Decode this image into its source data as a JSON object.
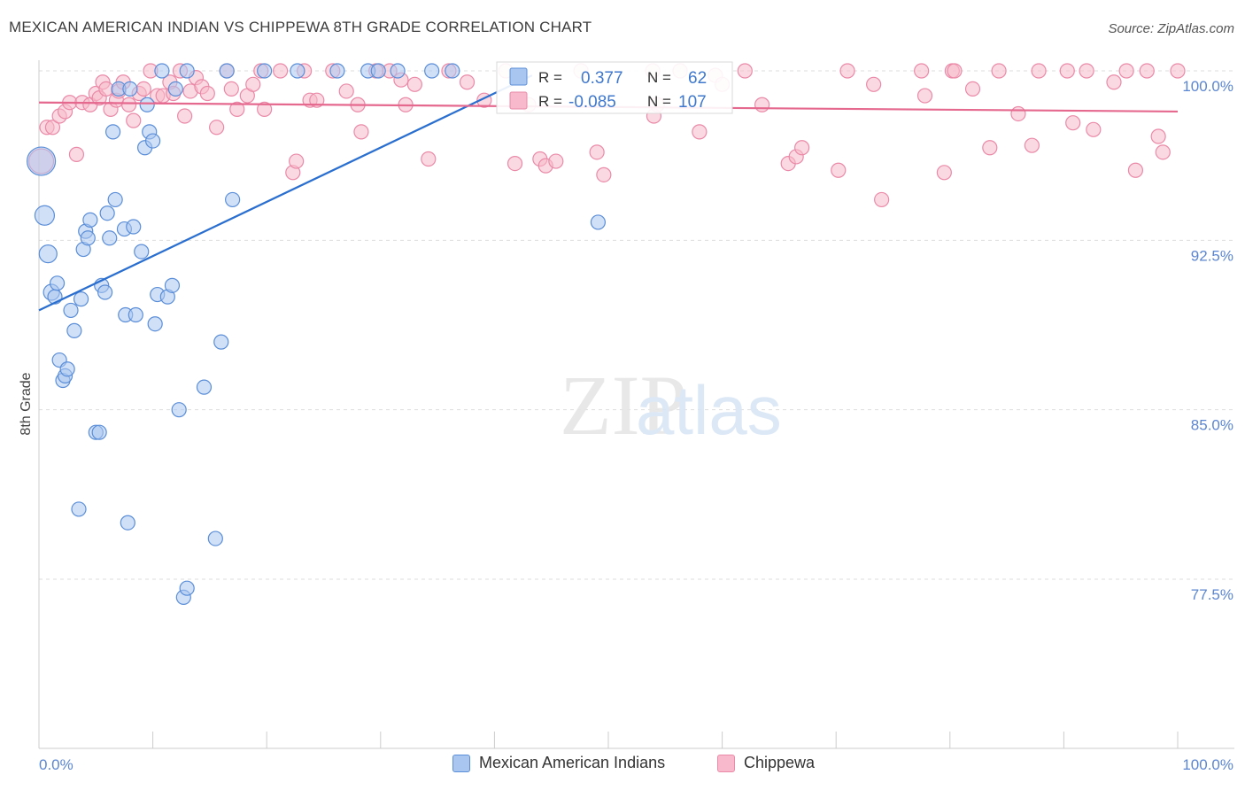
{
  "header": {
    "title": "MEXICAN AMERICAN INDIAN VS CHIPPEWA 8TH GRADE CORRELATION CHART",
    "source": "Source: ZipAtlas.com"
  },
  "watermark": {
    "zip": "ZIP",
    "atlas": "atlas"
  },
  "colors": {
    "blue_fill": "#a9c6f0",
    "blue_stroke": "#5b8ed8",
    "blue_line": "#2a6fcf",
    "pink_fill": "#f7b9cb",
    "pink_stroke": "#ea8aa8",
    "pink_line": "#e5688f",
    "grid": "#dddddd",
    "axis_text": "#5b86d1"
  },
  "stats_box": {
    "rows": [
      {
        "r_label": "R =",
        "r_value": "0.377",
        "n_label": "N =",
        "n_value": "62"
      },
      {
        "r_label": "R =",
        "r_value": "-0.085",
        "n_label": "N =",
        "n_value": "107"
      }
    ]
  },
  "chart_data": {
    "type": "scatter",
    "title": "MEXICAN AMERICAN INDIAN VS CHIPPEWA 8TH GRADE CORRELATION CHART",
    "xlabel": "",
    "ylabel": "8th Grade",
    "xlim": [
      0,
      100
    ],
    "ylim": [
      70.0,
      101.5
    ],
    "y_ticks": [
      77.5,
      85.0,
      92.5,
      100.0
    ],
    "y_tick_labels": [
      "77.5%",
      "85.0%",
      "92.5%",
      "100.0%"
    ],
    "x_tick_labels": [
      "0.0%",
      "100.0%"
    ],
    "legend": [
      "Mexican American Indians",
      "Chippewa"
    ],
    "series": [
      {
        "name": "Mexican American Indians",
        "trend": {
          "x0": 0,
          "y0": 89.4,
          "x1": 43.3,
          "y1": 99.8
        },
        "points": [
          [
            0.2,
            96.0,
            16
          ],
          [
            0.5,
            93.6,
            11
          ],
          [
            0.8,
            91.9,
            10
          ],
          [
            1.1,
            90.2,
            9
          ],
          [
            1.4,
            90.0,
            8
          ],
          [
            1.6,
            90.6,
            8
          ],
          [
            1.8,
            87.2,
            8
          ],
          [
            2.1,
            86.3,
            8
          ],
          [
            2.3,
            86.5,
            8
          ],
          [
            2.5,
            86.8,
            8
          ],
          [
            2.8,
            89.4,
            8
          ],
          [
            3.1,
            88.5,
            8
          ],
          [
            3.5,
            80.6,
            8
          ],
          [
            3.7,
            89.9,
            8
          ],
          [
            3.9,
            92.1,
            8
          ],
          [
            4.1,
            92.9,
            8
          ],
          [
            4.3,
            92.6,
            8
          ],
          [
            4.5,
            93.4,
            8
          ],
          [
            5.0,
            84.0,
            8
          ],
          [
            5.3,
            84.0,
            8
          ],
          [
            5.5,
            90.5,
            8
          ],
          [
            5.8,
            90.2,
            8
          ],
          [
            6.0,
            93.7,
            8
          ],
          [
            6.2,
            92.6,
            8
          ],
          [
            6.5,
            97.3,
            8
          ],
          [
            6.7,
            94.3,
            8
          ],
          [
            7.0,
            99.2,
            8
          ],
          [
            7.5,
            93.0,
            8
          ],
          [
            7.6,
            89.2,
            8
          ],
          [
            7.8,
            80.0,
            8
          ],
          [
            8.0,
            99.2,
            8
          ],
          [
            8.3,
            93.1,
            8
          ],
          [
            8.5,
            89.2,
            8
          ],
          [
            9.0,
            92.0,
            8
          ],
          [
            9.3,
            96.6,
            8
          ],
          [
            9.5,
            98.5,
            8
          ],
          [
            9.7,
            97.3,
            8
          ],
          [
            10.0,
            96.9,
            8
          ],
          [
            10.2,
            88.8,
            8
          ],
          [
            10.4,
            90.1,
            8
          ],
          [
            10.8,
            100.0,
            8
          ],
          [
            11.3,
            90.0,
            8
          ],
          [
            11.7,
            90.5,
            8
          ],
          [
            12.0,
            99.2,
            8
          ],
          [
            12.3,
            85.0,
            8
          ],
          [
            12.7,
            76.7,
            8
          ],
          [
            13.0,
            77.1,
            8
          ],
          [
            13.0,
            100.0,
            8
          ],
          [
            14.5,
            86.0,
            8
          ],
          [
            15.5,
            79.3,
            8
          ],
          [
            16.0,
            88.0,
            8
          ],
          [
            16.5,
            100.0,
            8
          ],
          [
            17.0,
            94.3,
            8
          ],
          [
            19.8,
            100.0,
            8
          ],
          [
            22.7,
            100.0,
            8
          ],
          [
            26.2,
            100.0,
            8
          ],
          [
            28.9,
            100.0,
            8
          ],
          [
            29.8,
            100.0,
            8
          ],
          [
            31.5,
            100.0,
            8
          ],
          [
            34.5,
            100.0,
            8
          ],
          [
            36.3,
            100.0,
            8
          ],
          [
            49.1,
            93.3,
            8
          ]
        ]
      },
      {
        "name": "Chippewa",
        "trend": {
          "x0": 0,
          "y0": 98.6,
          "x1": 100,
          "y1": 98.2
        },
        "points": [
          [
            0.2,
            96.0,
            14
          ],
          [
            0.7,
            97.5,
            8
          ],
          [
            1.2,
            97.5,
            8
          ],
          [
            1.8,
            98.0,
            8
          ],
          [
            2.3,
            98.2,
            8
          ],
          [
            2.7,
            98.6,
            8
          ],
          [
            3.3,
            96.3,
            8
          ],
          [
            3.8,
            98.6,
            8
          ],
          [
            4.5,
            98.5,
            8
          ],
          [
            5.0,
            99.0,
            8
          ],
          [
            5.3,
            98.8,
            8
          ],
          [
            5.6,
            99.5,
            8
          ],
          [
            5.9,
            99.2,
            8
          ],
          [
            6.3,
            98.3,
            8
          ],
          [
            6.8,
            98.7,
            8
          ],
          [
            7.0,
            99.1,
            8
          ],
          [
            7.4,
            99.5,
            8
          ],
          [
            7.9,
            98.5,
            8
          ],
          [
            8.3,
            97.8,
            8
          ],
          [
            8.8,
            99.0,
            8
          ],
          [
            9.2,
            99.2,
            8
          ],
          [
            9.8,
            100.0,
            8
          ],
          [
            10.4,
            98.9,
            8
          ],
          [
            10.9,
            98.9,
            8
          ],
          [
            11.5,
            99.5,
            8
          ],
          [
            11.8,
            99.0,
            8
          ],
          [
            12.4,
            100.0,
            8
          ],
          [
            12.8,
            98.0,
            8
          ],
          [
            13.3,
            99.1,
            8
          ],
          [
            13.8,
            99.7,
            8
          ],
          [
            14.3,
            99.3,
            8
          ],
          [
            14.8,
            99.0,
            8
          ],
          [
            15.6,
            97.5,
            8
          ],
          [
            16.5,
            100.0,
            8
          ],
          [
            16.9,
            99.2,
            8
          ],
          [
            17.4,
            98.3,
            8
          ],
          [
            18.3,
            98.9,
            8
          ],
          [
            18.8,
            99.4,
            8
          ],
          [
            19.5,
            100.0,
            8
          ],
          [
            19.8,
            98.3,
            8
          ],
          [
            21.2,
            100.0,
            8
          ],
          [
            22.3,
            95.5,
            8
          ],
          [
            22.6,
            96.0,
            8
          ],
          [
            23.3,
            100.0,
            8
          ],
          [
            23.8,
            98.7,
            8
          ],
          [
            24.4,
            98.7,
            8
          ],
          [
            25.8,
            100.0,
            8
          ],
          [
            27.0,
            99.1,
            8
          ],
          [
            28.0,
            98.5,
            8
          ],
          [
            28.3,
            97.3,
            8
          ],
          [
            29.6,
            100.0,
            8
          ],
          [
            30.8,
            100.0,
            8
          ],
          [
            31.8,
            99.6,
            8
          ],
          [
            32.2,
            98.5,
            8
          ],
          [
            33.0,
            99.4,
            8
          ],
          [
            34.2,
            96.1,
            8
          ],
          [
            36.0,
            100.0,
            8
          ],
          [
            37.6,
            99.5,
            8
          ],
          [
            39.1,
            98.7,
            8
          ],
          [
            41.0,
            100.0,
            8
          ],
          [
            41.8,
            95.9,
            8
          ],
          [
            43.0,
            98.5,
            8
          ],
          [
            44.0,
            96.1,
            8
          ],
          [
            44.5,
            95.8,
            8
          ],
          [
            45.4,
            96.0,
            8
          ],
          [
            47.6,
            100.0,
            8
          ],
          [
            49.0,
            96.4,
            8
          ],
          [
            49.6,
            95.4,
            8
          ],
          [
            53.9,
            100.0,
            8
          ],
          [
            54.0,
            98.0,
            8
          ],
          [
            54.3,
            98.5,
            8
          ],
          [
            56.3,
            100.0,
            8
          ],
          [
            58.0,
            97.3,
            8
          ],
          [
            59.4,
            99.8,
            8
          ],
          [
            60.0,
            99.4,
            8
          ],
          [
            62.0,
            100.0,
            8
          ],
          [
            63.5,
            98.5,
            8
          ],
          [
            65.8,
            95.9,
            8
          ],
          [
            66.5,
            96.2,
            8
          ],
          [
            67.0,
            96.6,
            8
          ],
          [
            70.2,
            95.6,
            8
          ],
          [
            71.0,
            100.0,
            8
          ],
          [
            74.0,
            94.3,
            8
          ],
          [
            73.3,
            99.4,
            8
          ],
          [
            77.5,
            100.0,
            8
          ],
          [
            77.8,
            98.9,
            8
          ],
          [
            79.5,
            95.5,
            8
          ],
          [
            80.2,
            100.0,
            8
          ],
          [
            80.4,
            100.0,
            8
          ],
          [
            82.0,
            99.2,
            8
          ],
          [
            83.5,
            96.6,
            8
          ],
          [
            84.3,
            100.0,
            8
          ],
          [
            86.0,
            98.1,
            8
          ],
          [
            87.2,
            96.7,
            8
          ],
          [
            87.8,
            100.0,
            8
          ],
          [
            90.3,
            100.0,
            8
          ],
          [
            90.8,
            97.7,
            8
          ],
          [
            92.0,
            100.0,
            8
          ],
          [
            92.6,
            97.4,
            8
          ],
          [
            94.4,
            99.5,
            8
          ],
          [
            95.5,
            100.0,
            8
          ],
          [
            96.3,
            95.6,
            8
          ],
          [
            97.3,
            100.0,
            8
          ],
          [
            98.3,
            97.1,
            8
          ],
          [
            98.7,
            96.4,
            8
          ],
          [
            100.0,
            100.0,
            8
          ]
        ]
      }
    ]
  },
  "legend": {
    "items": [
      {
        "label": "Mexican American Indians"
      },
      {
        "label": "Chippewa"
      }
    ]
  }
}
